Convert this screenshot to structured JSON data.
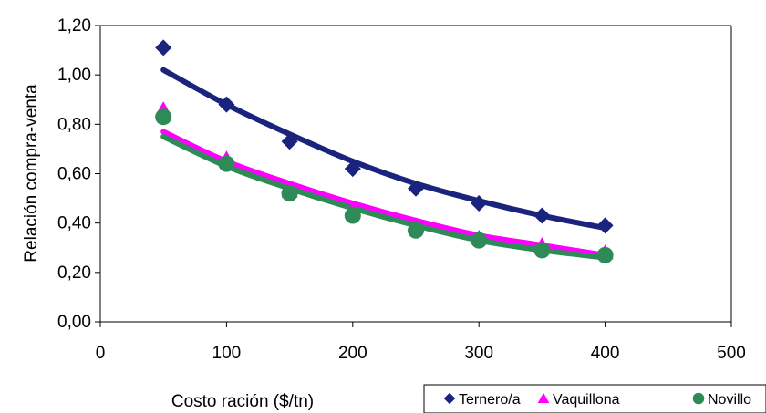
{
  "chart_data": {
    "type": "scatter",
    "xlabel": "Costo ración ($/tn)",
    "ylabel": "Relación compra-venta",
    "xlim": [
      0,
      500
    ],
    "ylim": [
      0,
      1.2
    ],
    "xticks": [
      0,
      100,
      200,
      300,
      400,
      500
    ],
    "yticks": [
      0,
      0.2,
      0.4,
      0.6,
      0.8,
      1.0,
      1.2
    ],
    "xtick_labels": [
      "0",
      "100",
      "200",
      "300",
      "400",
      "500"
    ],
    "ytick_labels": [
      "0,00",
      "0,20",
      "0,40",
      "0,60",
      "0,80",
      "1,00",
      "1,20"
    ],
    "grid": false,
    "legend_position": "bottom-right",
    "series": [
      {
        "name": "Ternero/a",
        "marker": "diamond",
        "color": "#1a237e",
        "x": [
          50,
          100,
          150,
          200,
          250,
          300,
          350,
          400
        ],
        "y": [
          1.11,
          0.88,
          0.73,
          0.62,
          0.54,
          0.48,
          0.43,
          0.39
        ],
        "trend_y": [
          1.02,
          0.88,
          0.76,
          0.65,
          0.56,
          0.49,
          0.43,
          0.38
        ]
      },
      {
        "name": "Vaquillona",
        "marker": "triangle",
        "color": "#ff00ff",
        "x": [
          50,
          100,
          150,
          200,
          250,
          300,
          350,
          400
        ],
        "y": [
          0.86,
          0.66,
          0.53,
          0.45,
          0.39,
          0.34,
          0.31,
          0.28
        ],
        "trend_y": [
          0.77,
          0.65,
          0.56,
          0.48,
          0.41,
          0.35,
          0.31,
          0.27
        ]
      },
      {
        "name": "Novillo",
        "marker": "circle",
        "color": "#2e8b57",
        "x": [
          50,
          100,
          150,
          200,
          250,
          300,
          350,
          400
        ],
        "y": [
          0.83,
          0.64,
          0.52,
          0.43,
          0.37,
          0.33,
          0.29,
          0.27
        ],
        "trend_y": [
          0.75,
          0.63,
          0.54,
          0.46,
          0.39,
          0.33,
          0.29,
          0.26
        ]
      }
    ]
  }
}
